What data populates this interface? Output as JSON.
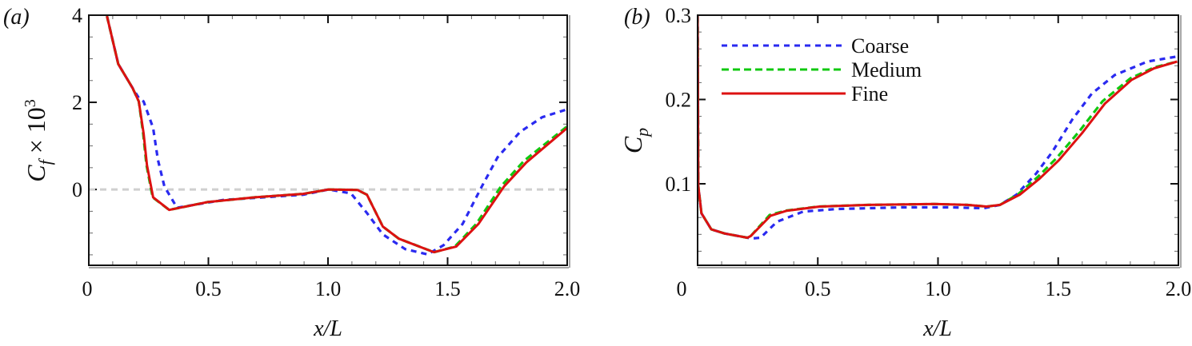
{
  "chart_data": [
    {
      "type": "line",
      "panel_label": "(a)",
      "xlabel": "x/L",
      "ylabel_main": "C",
      "ylabel_sub": "f",
      "ylabel_rest": " × 10",
      "ylabel_sup": "3",
      "xlim": [
        0,
        2.0
      ],
      "ylim": [
        -1.74,
        4
      ],
      "xticks": [
        0,
        0.5,
        1.0,
        1.5,
        2.0
      ],
      "xtick_labels": [
        "0",
        "0.5",
        "1.0",
        "1.5",
        "2.0"
      ],
      "yticks": [
        0,
        2,
        4
      ],
      "ytick_labels": [
        "0",
        "2",
        "4"
      ],
      "x_minor_step": 0.1,
      "y_minor_step": 0.5,
      "reference_line_y": 0,
      "series": [
        {
          "name": "Coarse",
          "color": "#2a2af0",
          "style": "dotted",
          "x": [
            0.076,
            0.123,
            0.183,
            0.209,
            0.229,
            0.269,
            0.289,
            0.316,
            0.369,
            0.563,
            0.896,
            1.003,
            1.096,
            1.163,
            1.229,
            1.323,
            1.416,
            1.483,
            1.563,
            1.643,
            1.709,
            1.803,
            1.896,
            2.0
          ],
          "y": [
            3.98,
            2.88,
            2.33,
            2.1,
            2.02,
            1.41,
            0.68,
            0.07,
            -0.42,
            -0.24,
            -0.12,
            0.0,
            -0.09,
            -0.54,
            -1.03,
            -1.37,
            -1.49,
            -1.28,
            -0.79,
            0.07,
            0.74,
            1.32,
            1.66,
            1.84
          ]
        },
        {
          "name": "Medium",
          "color": "#10c810",
          "style": "dashed",
          "x": [
            0.076,
            0.123,
            0.183,
            0.209,
            0.227,
            0.241,
            0.267,
            0.336,
            0.496,
            0.696,
            0.896,
            1.003,
            1.123,
            1.163,
            1.229,
            1.296,
            1.443,
            1.53,
            1.62,
            1.723,
            1.82,
            2.0
          ],
          "y": [
            3.98,
            2.88,
            2.33,
            2.02,
            1.29,
            0.56,
            -0.18,
            -0.47,
            -0.29,
            -0.18,
            -0.1,
            0.0,
            -0.01,
            -0.12,
            -0.85,
            -1.13,
            -1.44,
            -1.31,
            -0.79,
            0.07,
            0.66,
            1.45
          ]
        },
        {
          "name": "Fine",
          "color": "#dd1111",
          "style": "solid",
          "x": [
            0.076,
            0.123,
            0.183,
            0.209,
            0.229,
            0.243,
            0.269,
            0.336,
            0.496,
            0.696,
            0.896,
            1.003,
            1.123,
            1.163,
            1.229,
            1.296,
            1.443,
            1.536,
            1.629,
            1.736,
            1.829,
            2.0
          ],
          "y": [
            3.98,
            2.88,
            2.33,
            2.02,
            1.29,
            0.56,
            -0.18,
            -0.47,
            -0.29,
            -0.18,
            -0.1,
            0.0,
            -0.01,
            -0.12,
            -0.85,
            -1.13,
            -1.44,
            -1.31,
            -0.79,
            0.07,
            0.62,
            1.41
          ]
        }
      ]
    },
    {
      "type": "line",
      "panel_label": "(b)",
      "xlabel": "x/L",
      "ylabel_main": "C",
      "ylabel_sub": "p",
      "xlim": [
        0,
        2.0
      ],
      "ylim": [
        0.0033,
        0.3
      ],
      "xticks": [
        0,
        0.5,
        1.0,
        1.5,
        2.0
      ],
      "xtick_labels": [
        "0",
        "0.5",
        "1.0",
        "1.5",
        "2.0"
      ],
      "yticks": [
        0.1,
        0.2,
        0.3
      ],
      "ytick_labels": [
        "0.1",
        "0.2",
        "0.3"
      ],
      "x_minor_step": 0.1,
      "y_minor_step": 0.02,
      "legend": {
        "position": "top-left",
        "entries": [
          "Coarse",
          "Medium",
          "Fine"
        ]
      },
      "series": [
        {
          "name": "Coarse",
          "color": "#2a2af0",
          "style": "dotted",
          "x": [
            0,
            0.003,
            0.016,
            0.057,
            0.112,
            0.207,
            0.221,
            0.262,
            0.33,
            0.439,
            0.576,
            0.849,
            1.053,
            1.19,
            1.258,
            1.326,
            1.408,
            1.476,
            1.558,
            1.64,
            1.735,
            1.872,
            1.995
          ],
          "y": [
            0.299,
            0.097,
            0.065,
            0.046,
            0.041,
            0.036,
            0.035,
            0.036,
            0.055,
            0.067,
            0.07,
            0.072,
            0.072,
            0.071,
            0.075,
            0.087,
            0.112,
            0.138,
            0.176,
            0.207,
            0.229,
            0.245,
            0.251
          ]
        },
        {
          "name": "Medium",
          "color": "#10c810",
          "style": "dashed",
          "x": [
            0,
            0.003,
            0.016,
            0.057,
            0.112,
            0.207,
            0.221,
            0.3,
            0.365,
            0.5,
            0.712,
            0.985,
            1.121,
            1.203,
            1.258,
            1.335,
            1.415,
            1.495,
            1.59,
            1.685,
            1.8,
            1.899,
            1.995
          ],
          "y": [
            0.299,
            0.097,
            0.065,
            0.046,
            0.041,
            0.036,
            0.038,
            0.063,
            0.068,
            0.073,
            0.075,
            0.076,
            0.075,
            0.073,
            0.075,
            0.088,
            0.108,
            0.131,
            0.163,
            0.198,
            0.225,
            0.238,
            0.245
          ]
        },
        {
          "name": "Fine",
          "color": "#dd1111",
          "style": "solid",
          "x": [
            0,
            0.003,
            0.016,
            0.057,
            0.112,
            0.207,
            0.221,
            0.303,
            0.371,
            0.507,
            0.712,
            0.985,
            1.121,
            1.203,
            1.258,
            1.34,
            1.422,
            1.503,
            1.599,
            1.694,
            1.804,
            1.899,
            1.995
          ],
          "y": [
            0.299,
            0.097,
            0.065,
            0.046,
            0.041,
            0.036,
            0.038,
            0.062,
            0.068,
            0.073,
            0.075,
            0.076,
            0.075,
            0.073,
            0.075,
            0.087,
            0.106,
            0.128,
            0.16,
            0.195,
            0.223,
            0.237,
            0.245
          ]
        }
      ]
    }
  ]
}
